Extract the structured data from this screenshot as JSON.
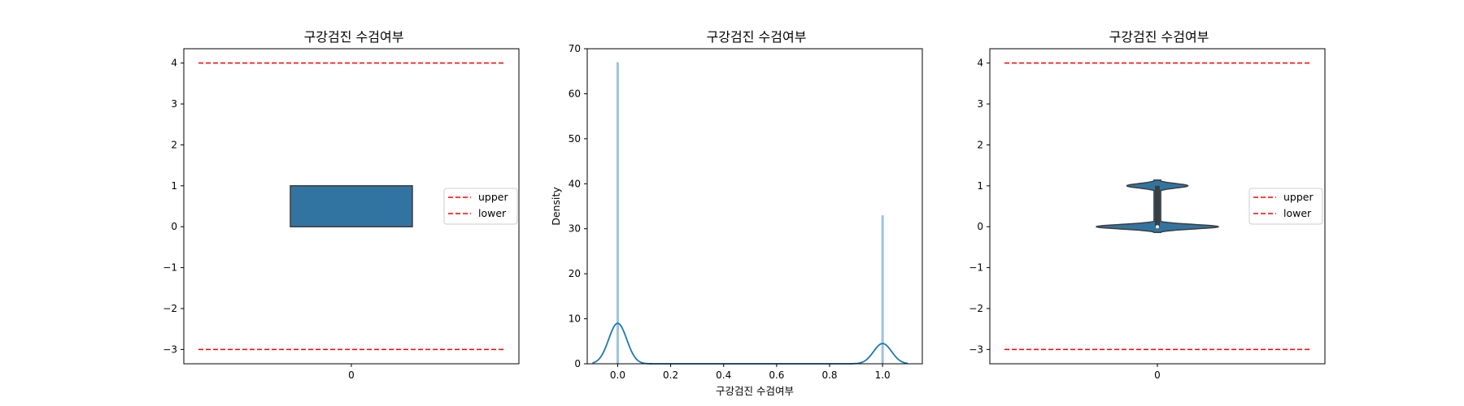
{
  "colors": {
    "box_fill": "#3274a1",
    "edge": "#3d3d3d",
    "hist_fill": "#9ec3de",
    "kde_line": "#1f77b4",
    "limit_line": "#ff0000"
  },
  "chart_data": [
    {
      "type": "box",
      "title": "구강검진 수검여부",
      "xlabel": "",
      "ylabel": "",
      "ylim": [
        -3.35,
        4.35
      ],
      "yticks": [
        -3,
        -2,
        -1,
        0,
        1,
        2,
        3,
        4
      ],
      "ytick_labels": [
        "−3",
        "−2",
        "−1",
        "0",
        "1",
        "2",
        "3",
        "4"
      ],
      "xtick_labels": [
        "0"
      ],
      "box": {
        "q1": 0,
        "median": 0,
        "q3": 1,
        "whisker_low": 0,
        "whisker_high": 1
      },
      "lines": [
        {
          "name": "upper",
          "value": 4
        },
        {
          "name": "lower",
          "value": -3
        }
      ],
      "legend": [
        "upper",
        "lower"
      ],
      "legend_position": "right"
    },
    {
      "type": "histogram",
      "title": "구강검진 수검여부",
      "xlabel": "구강검진 수검여부",
      "ylabel": "Density",
      "xlim": [
        -0.115,
        1.15
      ],
      "ylim": [
        0,
        70
      ],
      "xticks": [
        0.0,
        0.2,
        0.4,
        0.6,
        0.8,
        1.0
      ],
      "xtick_labels": [
        "0.0",
        "0.2",
        "0.4",
        "0.6",
        "0.8",
        "1.0"
      ],
      "yticks": [
        0,
        10,
        20,
        30,
        40,
        50,
        60,
        70
      ],
      "ytick_labels": [
        "0",
        "10",
        "20",
        "30",
        "40",
        "50",
        "60",
        "70"
      ],
      "bars": [
        {
          "x": 0.0,
          "density": 67
        },
        {
          "x": 1.0,
          "density": 33
        }
      ],
      "kde": {
        "peaks": [
          {
            "x": 0.0,
            "y": 9
          },
          {
            "x": 1.0,
            "y": 4.5
          }
        ],
        "x_range": [
          -0.095,
          1.095
        ]
      }
    },
    {
      "type": "violin",
      "title": "구강검진 수검여부",
      "xlabel": "",
      "ylabel": "",
      "ylim": [
        -3.35,
        4.35
      ],
      "yticks": [
        -3,
        -2,
        -1,
        0,
        1,
        2,
        3,
        4
      ],
      "ytick_labels": [
        "−3",
        "−2",
        "−1",
        "0",
        "1",
        "2",
        "3",
        "4"
      ],
      "xtick_labels": [
        "0"
      ],
      "violin": {
        "modes": [
          {
            "y": 0,
            "width": 1
          },
          {
            "y": 1,
            "width": 0.5
          }
        ]
      },
      "lines": [
        {
          "name": "upper",
          "value": 4
        },
        {
          "name": "lower",
          "value": -3
        }
      ],
      "legend": [
        "upper",
        "lower"
      ],
      "legend_position": "right"
    }
  ]
}
